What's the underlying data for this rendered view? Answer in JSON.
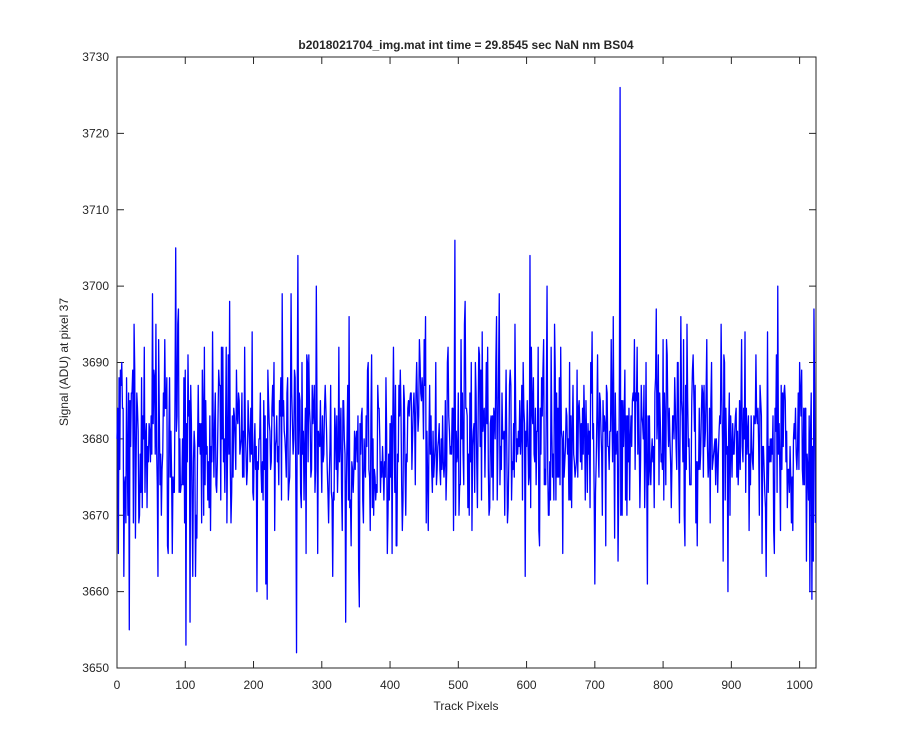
{
  "chart_data": {
    "type": "line",
    "title": "b2018021704_img.mat int time = 29.8545 sec  NaN nm BS04",
    "xlabel": "Track Pixels",
    "ylabel": "Signal (ADU) at pixel 37",
    "xlim": [
      0,
      1024
    ],
    "ylim": [
      3650,
      3730
    ],
    "xticks": [
      0,
      100,
      200,
      300,
      400,
      500,
      600,
      700,
      800,
      900,
      1000
    ],
    "yticks": [
      3650,
      3660,
      3670,
      3680,
      3690,
      3700,
      3710,
      3720,
      3730
    ],
    "xtick_labels": [
      "0",
      "100",
      "200",
      "300",
      "400",
      "500",
      "600",
      "700",
      "800",
      "900",
      "1000"
    ],
    "ytick_labels": [
      "3650",
      "3660",
      "3670",
      "3680",
      "3690",
      "3700",
      "3710",
      "3720",
      "3730"
    ],
    "grid": false,
    "series": [
      {
        "color": "#0000ff",
        "baseline": 3680,
        "noise_amplitude": 8,
        "n_points": 1024,
        "x": [
          0,
          5,
          10,
          18,
          26,
          40,
          52,
          60,
          70,
          86,
          90,
          101,
          107,
          125,
          140,
          152,
          165,
          180,
          205,
          220,
          240,
          255,
          263,
          265,
          280,
          335,
          340,
          355,
          400,
          430,
          455,
          495,
          510,
          540,
          560,
          598,
          605,
          630,
          641,
          700,
          727,
          737,
          740,
          760,
          790,
          800,
          820,
          850,
          870,
          885,
          920,
          945,
          968,
          975,
          1000,
          1010,
          1015,
          1018,
          1024
        ],
        "y": [
          3680,
          3689,
          3662,
          3655,
          3689,
          3692,
          3699,
          3662,
          3693,
          3705,
          3697,
          3653,
          3656,
          3689,
          3694,
          3672,
          3698,
          3678,
          3660,
          3659,
          3688,
          3699,
          3652,
          3704,
          3677,
          3656,
          3696,
          3658,
          3682,
          3686,
          3675,
          3706,
          3698,
          3682,
          3699,
          3662,
          3704,
          3700,
          3695,
          3661,
          3696,
          3726,
          3670,
          3686,
          3697,
          3693,
          3676,
          3666,
          3685,
          3695,
          3694,
          3665,
          3700,
          3686,
          3690,
          3664,
          3660,
          3659,
          3685
        ]
      }
    ]
  }
}
